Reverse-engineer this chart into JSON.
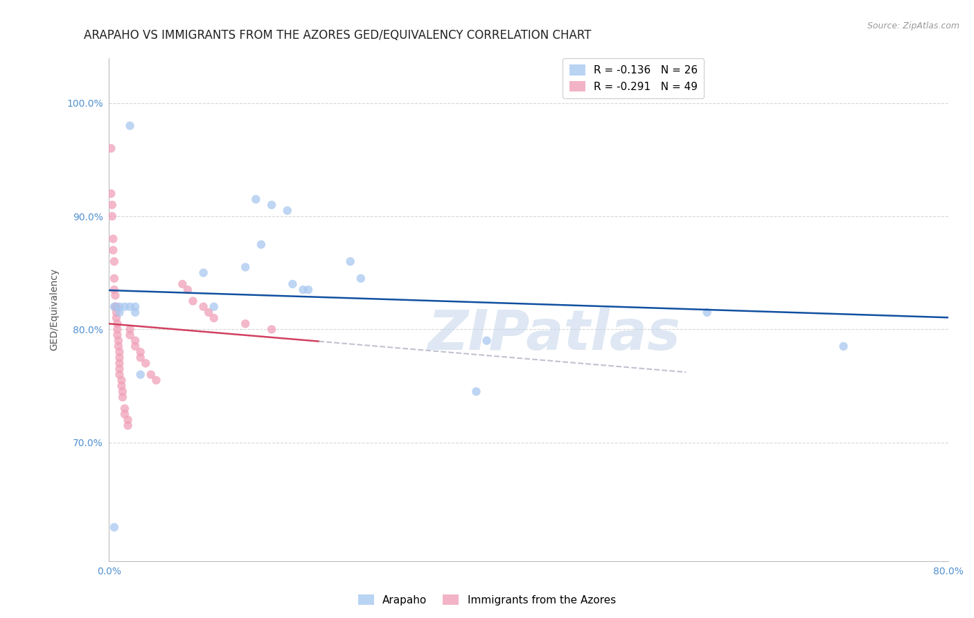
{
  "title": "ARAPAHO VS IMMIGRANTS FROM THE AZORES GED/EQUIVALENCY CORRELATION CHART",
  "source": "Source: ZipAtlas.com",
  "ylabel": "GED/Equivalency",
  "xlim": [
    0.0,
    0.8
  ],
  "ylim": [
    0.595,
    1.04
  ],
  "ytick_positions": [
    0.7,
    0.8,
    0.9,
    1.0
  ],
  "ytick_labels": [
    "70.0%",
    "80.0%",
    "90.0%",
    "100.0%"
  ],
  "xtick_positions": [
    0.0,
    0.1,
    0.2,
    0.3,
    0.4,
    0.5,
    0.6,
    0.7,
    0.8
  ],
  "xtick_labels": [
    "0.0%",
    "",
    "",
    "",
    "",
    "",
    "",
    "",
    "80.0%"
  ],
  "arapaho_R": -0.136,
  "arapaho_N": 26,
  "azores_R": -0.291,
  "azores_N": 49,
  "arapaho_color": "#A8C8F0",
  "azores_color": "#F0A0B8",
  "arapaho_line_color": "#1050A0",
  "azores_line_color": "#D04060",
  "azores_line_ext_color": "#C0C0D0",
  "background_color": "#FFFFFF",
  "grid_color": "#CCCCCC",
  "title_color": "#222222",
  "axis_tick_color": "#5090D0",
  "watermark_text": "ZIPatlas",
  "watermark_color": "#C8D8EC",
  "title_fontsize": 12,
  "tick_fontsize": 10,
  "legend_fontsize": 11,
  "marker_size": 80,
  "arapaho_x": [
    0.005,
    0.02,
    0.005,
    0.01,
    0.01,
    0.015,
    0.02,
    0.025,
    0.09,
    0.1,
    0.13,
    0.14,
    0.145,
    0.155,
    0.17,
    0.175,
    0.185,
    0.19,
    0.23,
    0.24,
    0.35,
    0.36,
    0.57,
    0.7,
    0.025,
    0.03
  ],
  "arapaho_y": [
    0.625,
    0.98,
    0.82,
    0.82,
    0.815,
    0.82,
    0.82,
    0.815,
    0.85,
    0.82,
    0.855,
    0.915,
    0.875,
    0.91,
    0.905,
    0.84,
    0.835,
    0.835,
    0.86,
    0.845,
    0.745,
    0.79,
    0.815,
    0.785,
    0.82,
    0.76
  ],
  "azores_x": [
    0.002,
    0.002,
    0.003,
    0.003,
    0.004,
    0.004,
    0.005,
    0.005,
    0.005,
    0.006,
    0.006,
    0.007,
    0.007,
    0.007,
    0.008,
    0.008,
    0.008,
    0.009,
    0.009,
    0.01,
    0.01,
    0.01,
    0.01,
    0.01,
    0.012,
    0.012,
    0.013,
    0.013,
    0.015,
    0.015,
    0.018,
    0.018,
    0.02,
    0.02,
    0.025,
    0.025,
    0.03,
    0.03,
    0.035,
    0.04,
    0.045,
    0.07,
    0.075,
    0.08,
    0.09,
    0.095,
    0.1,
    0.13,
    0.155
  ],
  "azores_y": [
    0.96,
    0.92,
    0.91,
    0.9,
    0.88,
    0.87,
    0.86,
    0.845,
    0.835,
    0.83,
    0.82,
    0.82,
    0.815,
    0.81,
    0.805,
    0.8,
    0.795,
    0.79,
    0.785,
    0.78,
    0.775,
    0.77,
    0.765,
    0.76,
    0.755,
    0.75,
    0.745,
    0.74,
    0.73,
    0.725,
    0.72,
    0.715,
    0.8,
    0.795,
    0.79,
    0.785,
    0.78,
    0.775,
    0.77,
    0.76,
    0.755,
    0.84,
    0.835,
    0.825,
    0.82,
    0.815,
    0.81,
    0.805,
    0.8
  ],
  "azores_line_x_solid_end": 0.2,
  "azores_line_x_ext_end": 0.55,
  "arapaho_line_x_start": 0.0,
  "arapaho_line_x_end": 0.8
}
